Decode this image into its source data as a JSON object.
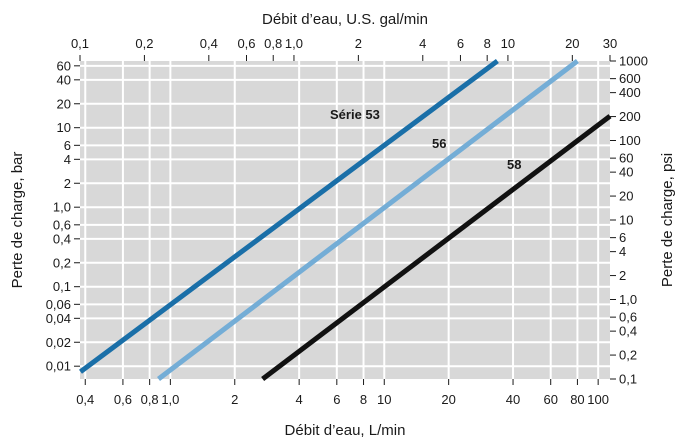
{
  "chart_data": {
    "type": "line",
    "title": "",
    "xlabel": "Débit d’eau, L/min",
    "ylabel": "Perte de charge, bar",
    "x2label": "Débit d’eau, U.S. gal/min",
    "y2label": "Perte de charge, psi",
    "x_scale": "log",
    "y_scale": "log",
    "xlim": [
      0.378,
      113.6
    ],
    "ylim": [
      0.0069,
      69
    ],
    "x2lim": [
      0.1,
      30
    ],
    "y2lim": [
      0.1,
      1000
    ],
    "grid": true,
    "legend": "none",
    "x_ticks": [
      0.4,
      0.6,
      0.8,
      1.0,
      2,
      4,
      6,
      8,
      10,
      20,
      40,
      60,
      80,
      100
    ],
    "x_tick_labels": [
      "0,4",
      "0,6",
      "0,8",
      "1,0",
      "2",
      "4",
      "6",
      "8",
      "10",
      "20",
      "40",
      "60",
      "80",
      "100"
    ],
    "x2_ticks": [
      0.1,
      0.2,
      0.4,
      0.6,
      0.8,
      1.0,
      2,
      4,
      6,
      8,
      10,
      20,
      30
    ],
    "x2_tick_labels": [
      "0,1",
      "0,2",
      "0,4",
      "0,6",
      "0,8",
      "1,0",
      "2",
      "4",
      "6",
      "8",
      "10",
      "20",
      "30"
    ],
    "y_ticks": [
      0.01,
      0.02,
      0.04,
      0.06,
      0.1,
      0.2,
      0.4,
      0.6,
      1.0,
      2,
      4,
      6,
      10,
      20,
      40,
      60
    ],
    "y_tick_labels": [
      "0,01",
      "0,02",
      "0,04",
      "0,06",
      "0,1",
      "0,2",
      "0,4",
      "0,6",
      "1,0",
      "2",
      "4",
      "6",
      "10",
      "20",
      "40",
      "60"
    ],
    "y2_ticks": [
      0.1,
      0.2,
      0.4,
      0.6,
      1.0,
      2,
      4,
      6,
      10,
      20,
      40,
      60,
      100,
      200,
      400,
      600,
      1000
    ],
    "y2_tick_labels": [
      "0,1",
      "0,2",
      "0,4",
      "0,6",
      "1,0",
      "2",
      "4",
      "6",
      "10",
      "20",
      "40",
      "60",
      "100",
      "200",
      "400",
      "600",
      "1000"
    ],
    "series": [
      {
        "name": "Série 53",
        "color": "#1a6fa8",
        "points": [
          [
            0.38,
            0.0085
          ],
          [
            33.8,
            69
          ]
        ]
      },
      {
        "name": "56",
        "color": "#74add6",
        "points": [
          [
            0.88,
            0.0069
          ],
          [
            80,
            69
          ]
        ]
      },
      {
        "name": "58",
        "color": "#111111",
        "points": [
          [
            2.7,
            0.0069
          ],
          [
            113.6,
            14
          ]
        ]
      }
    ],
    "background": "#d8d8d8",
    "grid_color": "#ffffff"
  }
}
